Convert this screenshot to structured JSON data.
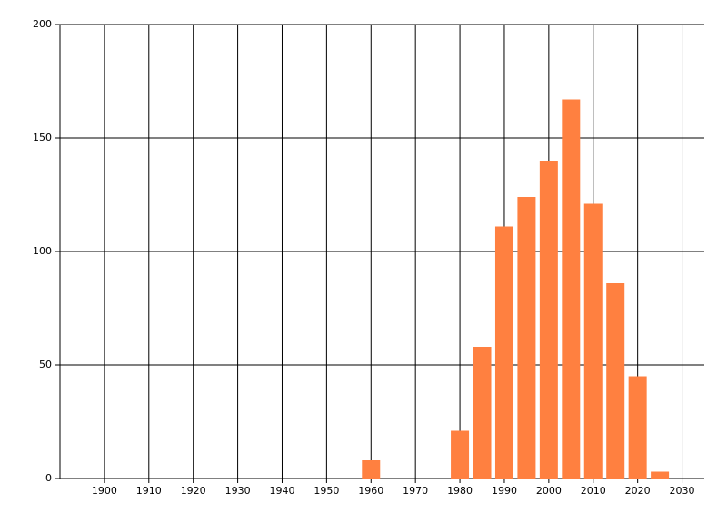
{
  "chart_data": {
    "type": "bar",
    "x": [
      1960,
      1980,
      1985,
      1990,
      1995,
      2000,
      2005,
      2010,
      2015,
      2020,
      2025
    ],
    "values": [
      8,
      21,
      58,
      111,
      124,
      140,
      167,
      121,
      86,
      45,
      3
    ],
    "color": "#ff8040",
    "xlim": [
      1890,
      2035
    ],
    "xticks": [
      1900,
      1910,
      1920,
      1930,
      1940,
      1950,
      1960,
      1970,
      1980,
      1990,
      2000,
      2010,
      2020,
      2030
    ],
    "ylim": [
      0,
      200
    ],
    "yticks": [
      0,
      50,
      100,
      150,
      200
    ],
    "grid": true
  }
}
